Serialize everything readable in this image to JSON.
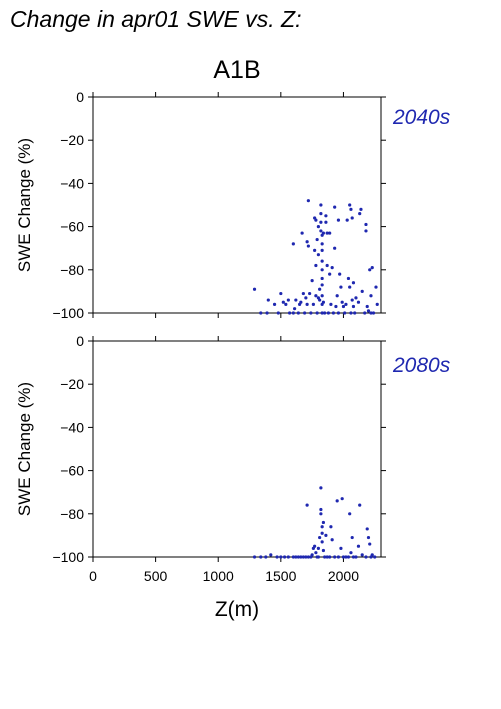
{
  "page": {
    "title": "Change in apr01 SWE vs. Z:",
    "scenario": "A1B"
  },
  "colors": {
    "points": "#1f28b0",
    "axes": "#000000"
  },
  "chart_data": [
    {
      "type": "scatter",
      "period_label": "2040s",
      "ylabel": "SWE Change (%)",
      "xlabel": "",
      "xlim": [
        0,
        2300
      ],
      "ylim": [
        -100,
        0
      ],
      "yticks": [
        0,
        -20,
        -40,
        -60,
        -80,
        -100
      ],
      "xticks": [
        0,
        500,
        1000,
        1500,
        2000
      ],
      "show_xtick_labels": false,
      "grid": false,
      "points": [
        [
          1290,
          -89
        ],
        [
          1340,
          -100
        ],
        [
          1390,
          -100
        ],
        [
          1400,
          -94
        ],
        [
          1450,
          -96
        ],
        [
          1480,
          -100
        ],
        [
          1500,
          -91
        ],
        [
          1520,
          -95
        ],
        [
          1540,
          -96
        ],
        [
          1560,
          -94
        ],
        [
          1570,
          -100
        ],
        [
          1600,
          -68
        ],
        [
          1600,
          -100
        ],
        [
          1610,
          -98
        ],
        [
          1620,
          -94
        ],
        [
          1640,
          -100
        ],
        [
          1650,
          -96
        ],
        [
          1660,
          -95
        ],
        [
          1670,
          -63
        ],
        [
          1680,
          -91
        ],
        [
          1690,
          -100
        ],
        [
          1700,
          -93
        ],
        [
          1710,
          -67
        ],
        [
          1710,
          -96
        ],
        [
          1720,
          -48
        ],
        [
          1720,
          -69
        ],
        [
          1730,
          -91
        ],
        [
          1740,
          -100
        ],
        [
          1750,
          -85
        ],
        [
          1760,
          -96
        ],
        [
          1770,
          -56
        ],
        [
          1770,
          -71
        ],
        [
          1780,
          -57
        ],
        [
          1780,
          -78
        ],
        [
          1780,
          -92
        ],
        [
          1790,
          -100
        ],
        [
          1790,
          -66
        ],
        [
          1800,
          -60
        ],
        [
          1800,
          -73
        ],
        [
          1800,
          -93
        ],
        [
          1810,
          -89
        ],
        [
          1810,
          -94
        ],
        [
          1820,
          -50
        ],
        [
          1820,
          -54
        ],
        [
          1820,
          -58
        ],
        [
          1820,
          -62
        ],
        [
          1830,
          -64
        ],
        [
          1830,
          -68
        ],
        [
          1830,
          -71
        ],
        [
          1830,
          -76
        ],
        [
          1830,
          -80
        ],
        [
          1830,
          -84
        ],
        [
          1830,
          -87
        ],
        [
          1830,
          -92
        ],
        [
          1830,
          -96
        ],
        [
          1830,
          -100
        ],
        [
          1840,
          -63
        ],
        [
          1840,
          -95
        ],
        [
          1850,
          -100
        ],
        [
          1860,
          -55
        ],
        [
          1860,
          -58
        ],
        [
          1870,
          -63
        ],
        [
          1870,
          -78
        ],
        [
          1880,
          -100
        ],
        [
          1890,
          -63
        ],
        [
          1890,
          -82
        ],
        [
          1900,
          -96
        ],
        [
          1910,
          -79
        ],
        [
          1920,
          -100
        ],
        [
          1930,
          -51
        ],
        [
          1930,
          -70
        ],
        [
          1940,
          -97
        ],
        [
          1950,
          -92
        ],
        [
          1960,
          -57
        ],
        [
          1960,
          -100
        ],
        [
          1970,
          -82
        ],
        [
          1980,
          -88
        ],
        [
          1990,
          -95
        ],
        [
          2000,
          -97
        ],
        [
          2010,
          -100
        ],
        [
          2020,
          -96
        ],
        [
          2030,
          -57
        ],
        [
          2040,
          -84
        ],
        [
          2050,
          -50
        ],
        [
          2050,
          -88
        ],
        [
          2060,
          -52
        ],
        [
          2060,
          -100
        ],
        [
          2070,
          -56
        ],
        [
          2070,
          -94
        ],
        [
          2080,
          -86
        ],
        [
          2080,
          -97
        ],
        [
          2090,
          -100
        ],
        [
          2100,
          -93
        ],
        [
          2120,
          -95
        ],
        [
          2130,
          -54
        ],
        [
          2140,
          -52
        ],
        [
          2150,
          -90
        ],
        [
          2170,
          -100
        ],
        [
          2180,
          -59
        ],
        [
          2180,
          -62
        ],
        [
          2190,
          -97
        ],
        [
          2200,
          -99
        ],
        [
          2210,
          -80
        ],
        [
          2220,
          -92
        ],
        [
          2220,
          -100
        ],
        [
          2230,
          -79
        ],
        [
          2240,
          -100
        ],
        [
          2260,
          -88
        ],
        [
          2270,
          -96
        ]
      ]
    },
    {
      "type": "scatter",
      "period_label": "2080s",
      "ylabel": "SWE Change (%)",
      "xlabel": "Z(m)",
      "xlim": [
        0,
        2300
      ],
      "ylim": [
        -100,
        0
      ],
      "yticks": [
        0,
        -20,
        -40,
        -60,
        -80,
        -100
      ],
      "xticks": [
        0,
        500,
        1000,
        1500,
        2000
      ],
      "show_xtick_labels": true,
      "grid": false,
      "points": [
        [
          1290,
          -100
        ],
        [
          1340,
          -100
        ],
        [
          1380,
          -100
        ],
        [
          1420,
          -99
        ],
        [
          1470,
          -100
        ],
        [
          1500,
          -100
        ],
        [
          1530,
          -100
        ],
        [
          1560,
          -100
        ],
        [
          1600,
          -100
        ],
        [
          1620,
          -100
        ],
        [
          1640,
          -100
        ],
        [
          1660,
          -100
        ],
        [
          1680,
          -100
        ],
        [
          1700,
          -100
        ],
        [
          1710,
          -76
        ],
        [
          1720,
          -100
        ],
        [
          1740,
          -100
        ],
        [
          1750,
          -99
        ],
        [
          1760,
          -96
        ],
        [
          1770,
          -95
        ],
        [
          1780,
          -98
        ],
        [
          1790,
          -100
        ],
        [
          1800,
          -96
        ],
        [
          1800,
          -100
        ],
        [
          1810,
          -91
        ],
        [
          1820,
          -68
        ],
        [
          1820,
          -78
        ],
        [
          1820,
          -80
        ],
        [
          1830,
          -86
        ],
        [
          1830,
          -89
        ],
        [
          1830,
          -93
        ],
        [
          1840,
          -84
        ],
        [
          1840,
          -97
        ],
        [
          1850,
          -100
        ],
        [
          1860,
          -90
        ],
        [
          1870,
          -100
        ],
        [
          1890,
          -100
        ],
        [
          1900,
          -86
        ],
        [
          1910,
          -92
        ],
        [
          1930,
          -100
        ],
        [
          1950,
          -74
        ],
        [
          1960,
          -100
        ],
        [
          1980,
          -96
        ],
        [
          1990,
          -73
        ],
        [
          2000,
          -100
        ],
        [
          2020,
          -100
        ],
        [
          2040,
          -100
        ],
        [
          2050,
          -80
        ],
        [
          2060,
          -98
        ],
        [
          2070,
          -91
        ],
        [
          2080,
          -100
        ],
        [
          2100,
          -100
        ],
        [
          2120,
          -95
        ],
        [
          2130,
          -76
        ],
        [
          2150,
          -99
        ],
        [
          2180,
          -100
        ],
        [
          2190,
          -87
        ],
        [
          2200,
          -91
        ],
        [
          2210,
          -94
        ],
        [
          2220,
          -100
        ],
        [
          2230,
          -99
        ],
        [
          2250,
          -100
        ]
      ]
    }
  ]
}
